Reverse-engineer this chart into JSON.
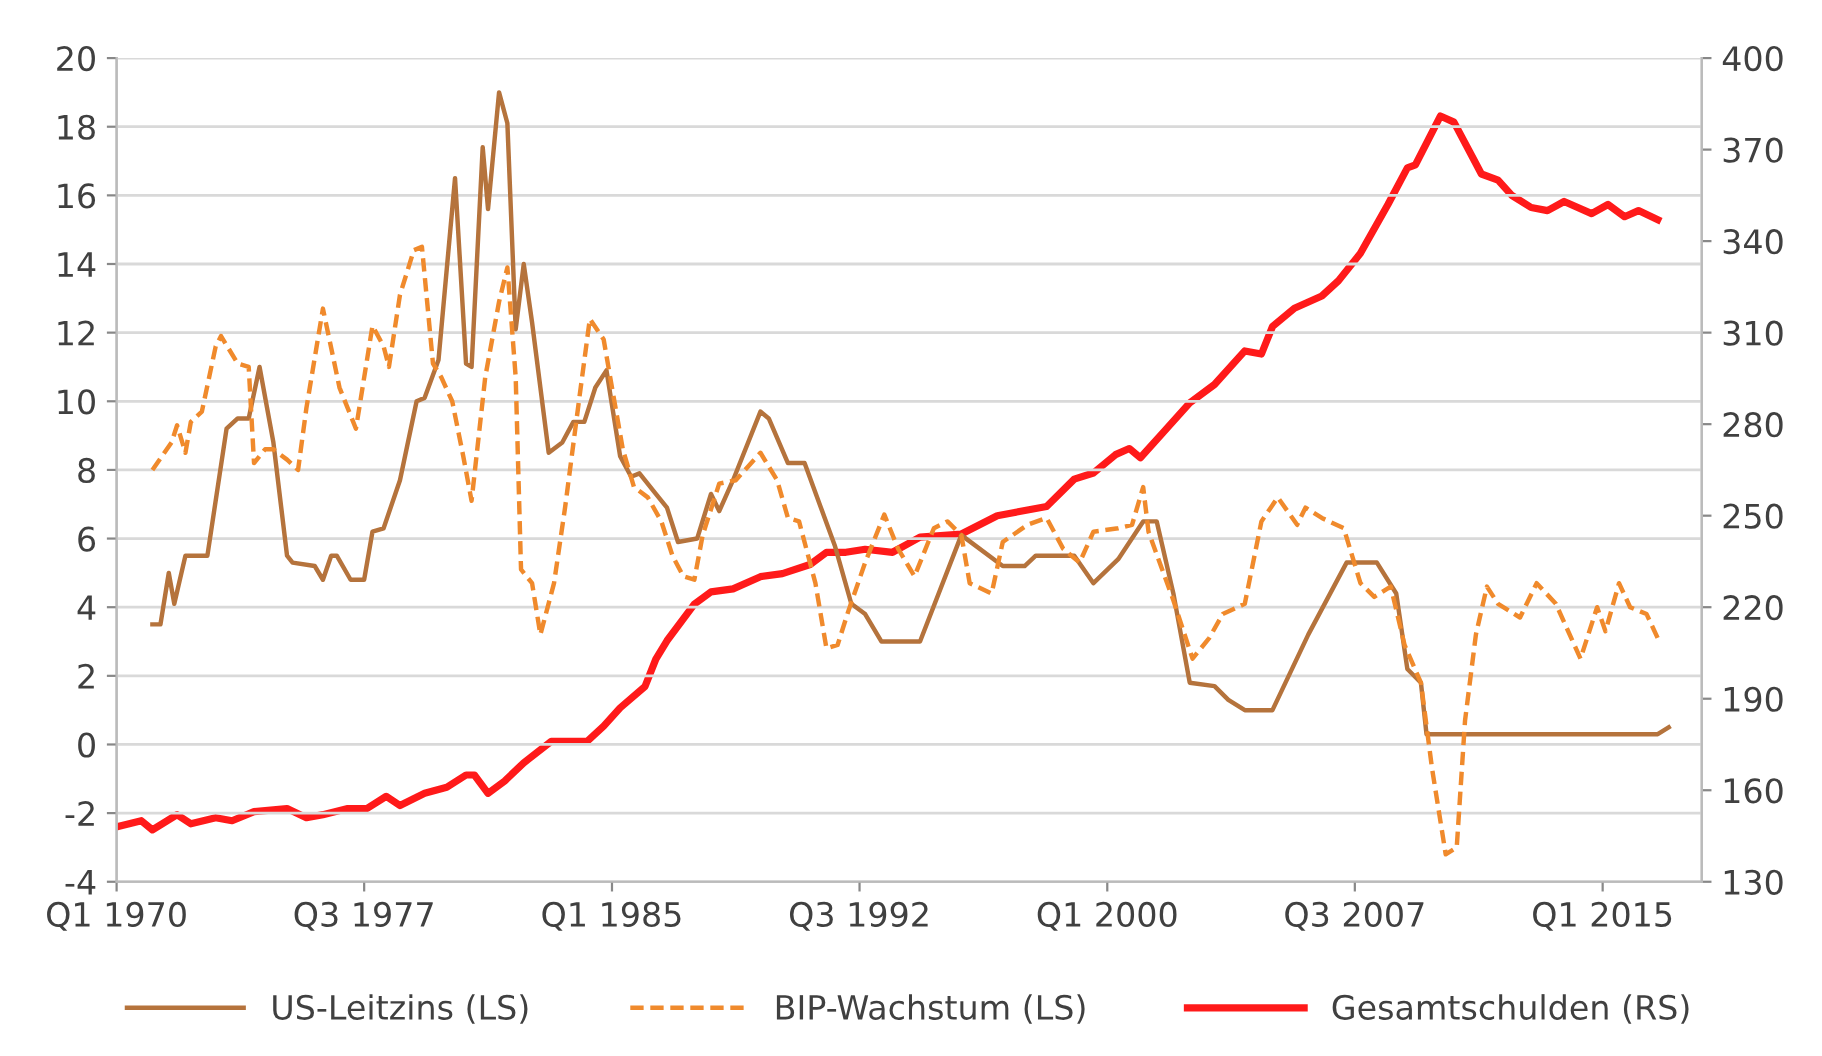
{
  "chart_data": {
    "type": "line",
    "grid": "y",
    "legend": "bottom",
    "marker": "none",
    "xlim": [
      "1970-01",
      "2018-01"
    ],
    "xticks": [
      {
        "value": "1970-01",
        "label": "Q1 1970"
      },
      {
        "value": "1977-07",
        "label": "Q3 1977"
      },
      {
        "value": "1985-01",
        "label": "Q1 1985"
      },
      {
        "value": "1992-07",
        "label": "Q3 1992"
      },
      {
        "value": "2000-01",
        "label": "Q1 2000"
      },
      {
        "value": "2007-07",
        "label": "Q3 2007"
      },
      {
        "value": "2015-01",
        "label": "Q1 2015"
      }
    ],
    "ylim": [
      -4,
      20
    ],
    "yticks": [
      -4,
      -2,
      0,
      2,
      4,
      6,
      8,
      10,
      12,
      14,
      16,
      18,
      20
    ],
    "y2lim": [
      130,
      400
    ],
    "y2ticks": [
      130,
      160,
      190,
      220,
      250,
      280,
      310,
      340,
      370,
      400
    ],
    "series": [
      {
        "name": "US-Leitzins (LS)",
        "color": "#b5733c",
        "line_style": "solid",
        "x": [
          "1971-02",
          "1971-05",
          "1971-08",
          "1971-10",
          "1972-02",
          "1972-10",
          "1973-05",
          "1973-09",
          "1974-01",
          "1974-05",
          "1974-10",
          "1975-03",
          "1975-05",
          "1976-01",
          "1976-04",
          "1976-07",
          "1976-09",
          "1977-02",
          "1977-07",
          "1977-10",
          "1978-02",
          "1978-08",
          "1979-02",
          "1979-05",
          "1979-10",
          "1980-04",
          "1980-08",
          "1980-10",
          "1981-02",
          "1981-04",
          "1981-08",
          "1981-11",
          "1982-02",
          "1982-05",
          "1982-08",
          "1983-02",
          "1983-07",
          "1983-11",
          "1984-03",
          "1984-07",
          "1984-11",
          "1985-04",
          "1985-08",
          "1985-11",
          "1986-05",
          "1986-09",
          "1987-01",
          "1987-08",
          "1988-01",
          "1988-04",
          "1988-09",
          "1989-07",
          "1989-10",
          "1990-05",
          "1990-11",
          "1991-05",
          "1991-10",
          "1992-04",
          "1992-09",
          "1993-03",
          "1994-05",
          "1995-08",
          "1996-11",
          "1997-07",
          "1997-11",
          "1999-01",
          "1999-08",
          "2000-05",
          "2001-02",
          "2001-07",
          "2002-01",
          "2002-07",
          "2003-04",
          "2003-09",
          "2004-03",
          "2005-01",
          "2006-02",
          "2007-04",
          "2008-03",
          "2008-10",
          "2009-02",
          "2009-07",
          "2009-09",
          "2016-09",
          "2017-01"
        ],
        "values": [
          3.5,
          3.5,
          5.0,
          4.1,
          5.5,
          5.5,
          9.2,
          9.5,
          9.5,
          11.0,
          8.8,
          5.5,
          5.3,
          5.2,
          4.8,
          5.5,
          5.5,
          4.8,
          4.8,
          6.2,
          6.3,
          7.7,
          10.0,
          10.1,
          11.2,
          16.5,
          11.1,
          11.0,
          17.4,
          15.6,
          19.0,
          18.1,
          12.1,
          14.0,
          12.3,
          8.5,
          8.8,
          9.4,
          9.4,
          10.4,
          10.9,
          8.4,
          7.8,
          7.9,
          7.3,
          6.9,
          5.9,
          6.0,
          7.3,
          6.8,
          7.7,
          9.7,
          9.5,
          8.2,
          8.2,
          6.9,
          5.8,
          4.1,
          3.8,
          3.0,
          3.0,
          6.1,
          5.2,
          5.2,
          5.5,
          5.5,
          4.7,
          5.4,
          6.5,
          6.5,
          4.4,
          1.8,
          1.7,
          1.3,
          1.0,
          1.0,
          3.2,
          5.3,
          5.3,
          4.4,
          2.2,
          1.8,
          0.3,
          0.3,
          0.5
        ]
      },
      {
        "name": "BIP-Wachstum (LS)",
        "color": "#f08a2c",
        "line_style": "dashed",
        "x": [
          "1971-02",
          "1971-09",
          "1971-11",
          "1972-02",
          "1972-04",
          "1972-08",
          "1973-01",
          "1973-03",
          "1973-09",
          "1974-01",
          "1974-03",
          "1974-07",
          "1974-10",
          "1975-03",
          "1975-07",
          "1975-10",
          "1976-04",
          "1976-10",
          "1977-04",
          "1977-10",
          "1978-02",
          "1978-04",
          "1978-08",
          "1979-01",
          "1979-04",
          "1979-08",
          "1979-11",
          "1980-03",
          "1980-07",
          "1980-10",
          "1981-03",
          "1981-08",
          "1981-11",
          "1982-02",
          "1982-04",
          "1982-08",
          "1982-11",
          "1983-04",
          "1983-08",
          "1984-01",
          "1984-05",
          "1984-10",
          "1985-01",
          "1985-05",
          "1985-09",
          "1986-02",
          "1986-07",
          "1986-11",
          "1987-03",
          "1987-07",
          "1987-10",
          "1988-04",
          "1988-10",
          "1989-07",
          "1990-01",
          "1990-05",
          "1990-09",
          "1991-03",
          "1991-07",
          "1991-11",
          "1992-03",
          "1992-09",
          "1993-04",
          "1993-09",
          "1994-03",
          "1994-10",
          "1995-03",
          "1995-08",
          "1995-11",
          "1996-07",
          "1996-11",
          "1997-08",
          "1998-03",
          "1998-09",
          "1999-03",
          "1999-08",
          "2000-05",
          "2000-10",
          "2001-02",
          "2001-04",
          "2002-01",
          "2002-08",
          "2003-02",
          "2003-07",
          "2004-03",
          "2004-09",
          "2005-03",
          "2005-10",
          "2006-01",
          "2006-07",
          "2007-03",
          "2007-09",
          "2008-02",
          "2008-08",
          "2009-01",
          "2009-07",
          "2009-11",
          "2010-04",
          "2010-08",
          "2010-11",
          "2011-03",
          "2011-07",
          "2011-11",
          "2012-07",
          "2013-01",
          "2013-08",
          "2014-05",
          "2014-11",
          "2015-02",
          "2015-07",
          "2015-11",
          "2016-05",
          "2016-09"
        ],
        "values": [
          8.0,
          8.8,
          9.3,
          8.5,
          9.4,
          9.7,
          11.6,
          11.9,
          11.1,
          11.0,
          8.2,
          8.6,
          8.6,
          8.3,
          8.0,
          9.8,
          12.7,
          10.4,
          9.2,
          12.2,
          11.6,
          11.0,
          13.1,
          14.4,
          14.5,
          11.1,
          10.7,
          10.0,
          8.4,
          7.1,
          10.7,
          12.9,
          13.9,
          10.7,
          5.1,
          4.7,
          3.2,
          4.7,
          6.9,
          10.0,
          12.4,
          11.8,
          10.4,
          8.6,
          7.5,
          7.2,
          6.5,
          5.5,
          4.9,
          4.8,
          6.1,
          7.6,
          7.7,
          8.5,
          7.7,
          6.6,
          6.5,
          4.7,
          2.8,
          2.9,
          3.9,
          5.3,
          6.7,
          5.7,
          4.9,
          6.3,
          6.5,
          6.1,
          4.7,
          4.4,
          5.9,
          6.4,
          6.6,
          5.7,
          5.3,
          6.2,
          6.3,
          6.4,
          7.5,
          6.2,
          4.2,
          2.5,
          3.1,
          3.8,
          4.1,
          6.5,
          7.2,
          6.4,
          6.9,
          6.6,
          6.3,
          4.7,
          4.3,
          4.6,
          2.9,
          1.8,
          -0.7,
          -3.2,
          -3.0,
          0.7,
          3.2,
          4.6,
          4.1,
          3.7,
          4.7,
          4.1,
          2.5,
          4.0,
          3.3,
          4.7,
          4.0,
          3.8,
          3.1
        ]
      },
      {
        "name": "Gesamtschulden (RS)",
        "color": "#ff1a1a",
        "line_style": "solid",
        "axis": "y2",
        "x": [
          "1970-01",
          "1970-10",
          "1971-02",
          "1971-11",
          "1972-04",
          "1973-01",
          "1973-07",
          "1974-03",
          "1975-03",
          "1975-10",
          "1976-04",
          "1977-01",
          "1977-08",
          "1978-03",
          "1978-08",
          "1979-05",
          "1980-01",
          "1980-08",
          "1980-11",
          "1981-04",
          "1981-10",
          "1982-05",
          "1983-03",
          "1984-04",
          "1984-10",
          "1985-04",
          "1986-01",
          "1986-05",
          "1986-09",
          "1987-07",
          "1988-01",
          "1988-09",
          "1989-07",
          "1990-03",
          "1991-01",
          "1991-07",
          "1992-02",
          "1992-09",
          "1993-07",
          "1994-01",
          "1994-05",
          "1995-08",
          "1996-09",
          "1998-03",
          "1999-01",
          "1999-08",
          "2000-04",
          "2000-09",
          "2001-01",
          "2001-09",
          "2002-07",
          "2003-04",
          "2004-03",
          "2004-09",
          "2005-01",
          "2005-09",
          "2006-07",
          "2007-01",
          "2007-09",
          "2008-07",
          "2009-02",
          "2009-05",
          "2010-02",
          "2010-07",
          "2011-02",
          "2011-05",
          "2011-11",
          "2012-04",
          "2012-11",
          "2013-05",
          "2013-11",
          "2014-09",
          "2015-03",
          "2015-09",
          "2016-02",
          "2016-09"
        ],
        "values": [
          148,
          150,
          147,
          152,
          149,
          151,
          150,
          153,
          154,
          151,
          152,
          154,
          154,
          158,
          155,
          159,
          161,
          165,
          165,
          159,
          163,
          169,
          176,
          176,
          181,
          187,
          194,
          203,
          209,
          221,
          225,
          226,
          230,
          231,
          234,
          238,
          238,
          239,
          238,
          241,
          243,
          244,
          250,
          253,
          262,
          264,
          270,
          272,
          269,
          277,
          287,
          293,
          304,
          303,
          312,
          318,
          322,
          327,
          336,
          352,
          364,
          365,
          381,
          379,
          367,
          362,
          360,
          355,
          351,
          350,
          353,
          349,
          352,
          348,
          350,
          347
        ]
      }
    ]
  }
}
